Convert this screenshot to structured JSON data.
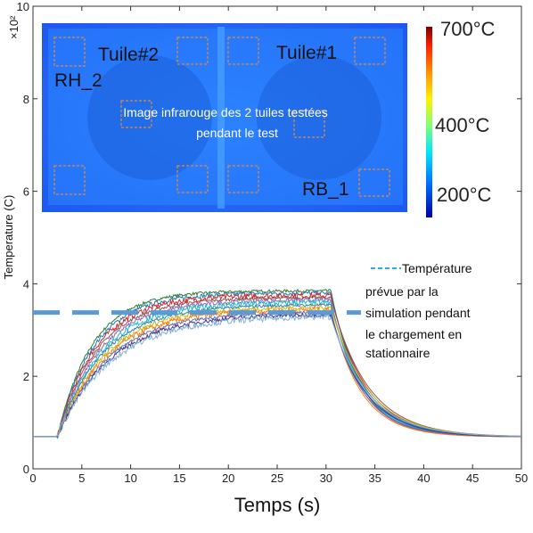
{
  "chart_data": {
    "type": "line",
    "xlabel": "Temps (s)",
    "ylabel": "Temperature (C)",
    "y_multiplier": "×10²",
    "xlim": [
      0,
      50
    ],
    "ylim": [
      0,
      10
    ],
    "x_ticks": [
      0,
      5,
      10,
      15,
      20,
      25,
      30,
      35,
      40,
      45,
      50
    ],
    "y_ticks": [
      0,
      2,
      4,
      6,
      8,
      10
    ],
    "grid": false,
    "heating_start_s": 2.5,
    "cooling_start_s": 30.5,
    "initial_value": 0.7,
    "final_value": 0.69,
    "series_plateaus": [
      3.85,
      3.8,
      3.75,
      3.7,
      3.65,
      3.6,
      3.55,
      3.5,
      3.45,
      3.4,
      3.35,
      3.3
    ],
    "series_colors": [
      "#2e7d32",
      "#1f77b4",
      "#d62728",
      "#8c564b",
      "#9467bd",
      "#17becf",
      "#3a7ca5",
      "#bcbd22",
      "#ff7f0e",
      "#5a6fb0",
      "#4a2f8a",
      "#80b1d3"
    ],
    "reference_line": {
      "value": 3.38,
      "style": "dashed",
      "color": "#5b9bd5",
      "legend_line1": "Température",
      "legend_rest": [
        "prévue par la",
        "simulation pendant",
        "le chargement en",
        "stationnaire"
      ]
    }
  },
  "inset": {
    "caption_line1": "Image infrarouge des 2 tuiles testées",
    "caption_line2": "pendant le test",
    "labels": {
      "tile2": "Tuile#2",
      "tile1": "Tuile#1",
      "rh": "RH_2",
      "rb": "RB_1"
    },
    "colorbar": {
      "top_label": "700°C",
      "mid_label": "400°C",
      "bottom_label": "200°C"
    }
  }
}
